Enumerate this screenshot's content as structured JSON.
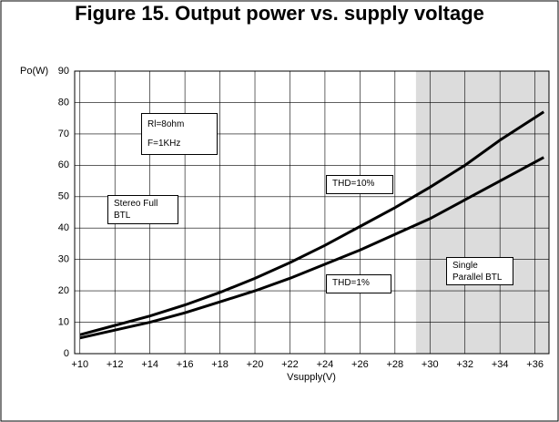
{
  "chart_data": {
    "type": "line",
    "title": "Figure 15. Output power vs. supply voltage",
    "xlabel": "Vsupply(V)",
    "ylabel": "Po(W)",
    "xlim": [
      9.7,
      36.8
    ],
    "ylim": [
      0,
      90
    ],
    "xticks": [
      {
        "value": 10,
        "label": "+10"
      },
      {
        "value": 12,
        "label": "+12"
      },
      {
        "value": 14,
        "label": "+14"
      },
      {
        "value": 16,
        "label": "+16"
      },
      {
        "value": 18,
        "label": "+18"
      },
      {
        "value": 20,
        "label": "+20"
      },
      {
        "value": 22,
        "label": "+22"
      },
      {
        "value": 24,
        "label": "+24"
      },
      {
        "value": 26,
        "label": "+26"
      },
      {
        "value": 28,
        "label": "+28"
      },
      {
        "value": 30,
        "label": "+30"
      },
      {
        "value": 32,
        "label": "+32"
      },
      {
        "value": 34,
        "label": "+34"
      },
      {
        "value": 36,
        "label": "+36"
      }
    ],
    "yticks": [
      0,
      10,
      20,
      30,
      40,
      50,
      60,
      70,
      80,
      90
    ],
    "grid": true,
    "shaded_region": [
      29.2,
      36.8
    ],
    "x": [
      10,
      12,
      14,
      16,
      18,
      20,
      22,
      24,
      26,
      28,
      30,
      32,
      34,
      36.5
    ],
    "series": [
      {
        "name": "THD=10%",
        "color": "#000000",
        "values": [
          6,
          9,
          12,
          15.5,
          19.5,
          24,
          29,
          34.5,
          40.5,
          46.5,
          53,
          60,
          68,
          77
        ]
      },
      {
        "name": "THD=1%",
        "color": "#000000",
        "values": [
          5,
          7.5,
          10,
          13,
          16.5,
          20,
          24,
          28.5,
          33,
          38,
          43,
          49,
          55,
          62.5
        ]
      }
    ],
    "annotations": [
      "Rl=8ohm",
      "F=1KHz",
      "Stereo Full BTL",
      "Single Parallel BTL"
    ]
  }
}
